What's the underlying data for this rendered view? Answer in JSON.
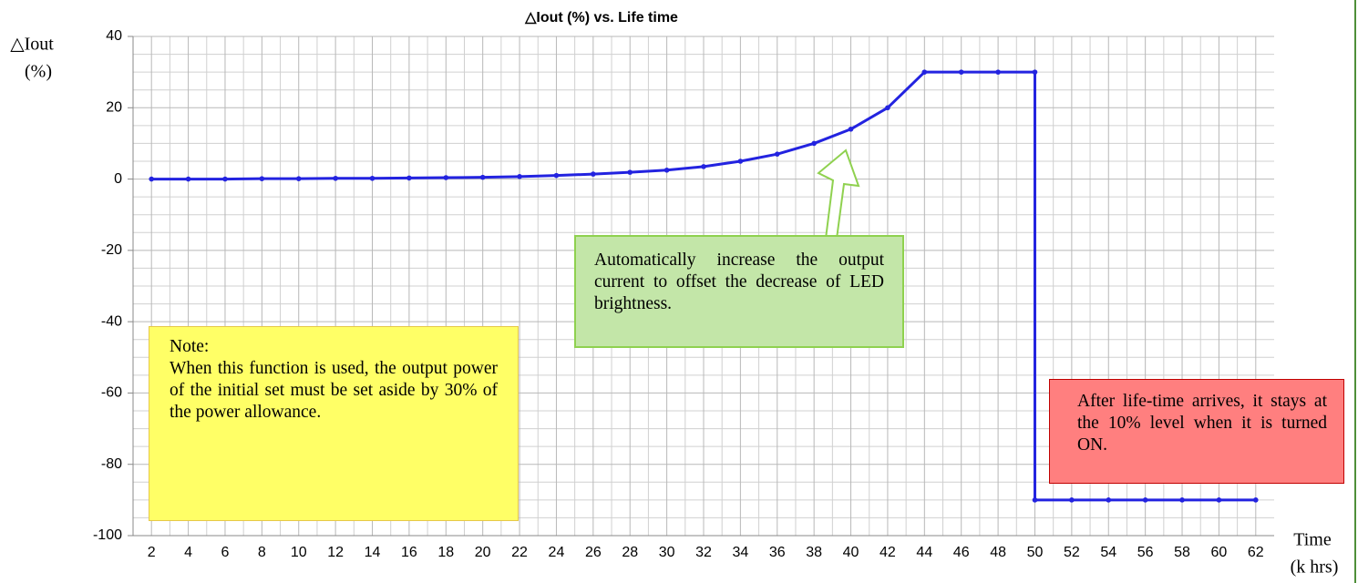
{
  "chart_data": {
    "type": "line",
    "title": "△Iout (%) vs. Life time",
    "y_label": [
      "△Iout",
      "(%)"
    ],
    "x_label": [
      "Time",
      "(k hrs)"
    ],
    "x": [
      2,
      4,
      6,
      8,
      10,
      12,
      14,
      16,
      18,
      20,
      22,
      24,
      26,
      28,
      30,
      32,
      34,
      36,
      38,
      40,
      42,
      44,
      46,
      48,
      50,
      50,
      52,
      54,
      56,
      58,
      60,
      62
    ],
    "series": [
      {
        "name": "△Iout",
        "color": "#2323e0",
        "values": [
          0,
          0,
          0,
          0.1,
          0.1,
          0.2,
          0.2,
          0.3,
          0.4,
          0.5,
          0.7,
          1,
          1.4,
          1.9,
          2.5,
          3.5,
          5,
          7,
          10,
          14,
          20,
          30,
          30,
          30,
          30,
          -90,
          -90,
          -90,
          -90,
          -90,
          -90,
          -90
        ]
      }
    ],
    "xlim": [
      1,
      63
    ],
    "xticks": [
      2,
      4,
      6,
      8,
      10,
      12,
      14,
      16,
      18,
      20,
      22,
      24,
      26,
      28,
      30,
      32,
      34,
      36,
      38,
      40,
      42,
      44,
      46,
      48,
      50,
      52,
      54,
      56,
      58,
      60,
      62
    ],
    "ylim": [
      -100,
      40
    ],
    "yticks": [
      -100,
      -80,
      -60,
      -40,
      -20,
      0,
      20,
      40
    ],
    "grid": true,
    "annotations": [
      {
        "title": "Note:",
        "text": "When this function is used, the output power of the initial set must be set aside by 30% of the power allowance."
      },
      {
        "text": "Automatically increase the output current to offset the decrease of LED brightness."
      },
      {
        "text": "After life-time arrives, it stays at the 10% level when it is turned ON."
      }
    ]
  }
}
